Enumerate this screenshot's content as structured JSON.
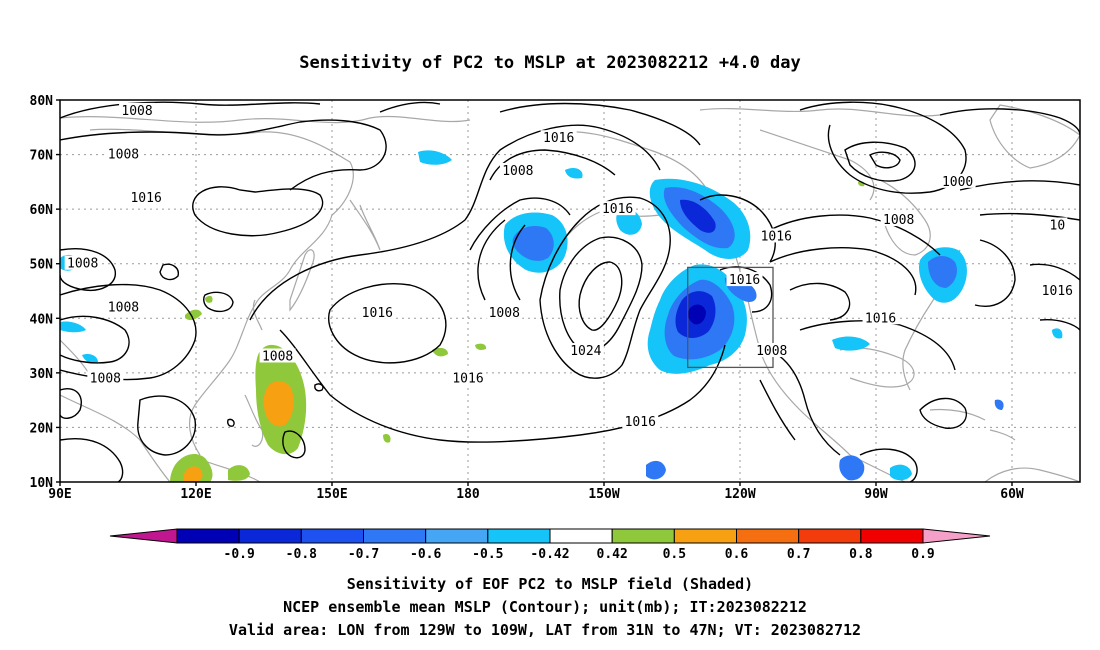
{
  "title": "Sensitivity of PC2 to MSLP at 2023082212 +4.0 day",
  "axes": {
    "lat_labels": [
      "80N",
      "70N",
      "60N",
      "50N",
      "40N",
      "30N",
      "20N",
      "10N"
    ],
    "lat_values": [
      80,
      70,
      60,
      50,
      40,
      30,
      20,
      10
    ],
    "lon_labels": [
      "90E",
      "120E",
      "150E",
      "180",
      "150W",
      "120W",
      "90W",
      "60W"
    ],
    "lon_values": [
      90,
      120,
      150,
      180,
      210,
      240,
      270,
      300
    ],
    "lon_range": [
      90,
      315
    ],
    "lat_range": [
      10,
      80
    ],
    "grid": "dotted"
  },
  "colorbar": {
    "tick_labels": [
      "-0.9",
      "-0.8",
      "-0.7",
      "-0.6",
      "-0.5",
      "-0.42",
      "0.42",
      "0.5",
      "0.6",
      "0.7",
      "0.8",
      "0.9"
    ],
    "colors": [
      "#c0168f",
      "#0000b4",
      "#0a28d8",
      "#1e52f0",
      "#2f78f5",
      "#44a6f5",
      "#15c4f8",
      "#ffffff",
      "#90c83c",
      "#f7a012",
      "#f56e10",
      "#f23c0c",
      "#f00000",
      "#f5a0c8"
    ]
  },
  "contour_labels": [
    {
      "text": "1008",
      "lon": 107,
      "lat": 78
    },
    {
      "text": "1008",
      "lon": 104,
      "lat": 70
    },
    {
      "text": "1016",
      "lon": 200,
      "lat": 73
    },
    {
      "text": "1008",
      "lon": 191,
      "lat": 67
    },
    {
      "text": "1016",
      "lon": 109,
      "lat": 62
    },
    {
      "text": "1008",
      "lon": 95,
      "lat": 50
    },
    {
      "text": "1008",
      "lon": 104,
      "lat": 42
    },
    {
      "text": "1016",
      "lon": 213,
      "lat": 60
    },
    {
      "text": "1016",
      "lon": 160,
      "lat": 41
    },
    {
      "text": "1008",
      "lon": 188,
      "lat": 41
    },
    {
      "text": "1024",
      "lon": 206,
      "lat": 34
    },
    {
      "text": "1008",
      "lon": 138,
      "lat": 33
    },
    {
      "text": "1008",
      "lon": 100,
      "lat": 29
    },
    {
      "text": "1016",
      "lon": 180,
      "lat": 29
    },
    {
      "text": "1016",
      "lon": 218,
      "lat": 21
    },
    {
      "text": "1016",
      "lon": 248,
      "lat": 55
    },
    {
      "text": "1016",
      "lon": 241,
      "lat": 47
    },
    {
      "text": "1008",
      "lon": 247,
      "lat": 34
    },
    {
      "text": "1016",
      "lon": 271,
      "lat": 40
    },
    {
      "text": "1008",
      "lon": 275,
      "lat": 58
    },
    {
      "text": "1000",
      "lon": 288,
      "lat": 65
    },
    {
      "text": "10",
      "lon": 310,
      "lat": 57
    },
    {
      "text": "1016",
      "lon": 310,
      "lat": 45
    }
  ],
  "valid_box": {
    "lon_min": 231,
    "lon_max": 251,
    "lat_min": 31,
    "lat_max": 47
  },
  "caption": {
    "line1": "Sensitivity of EOF PC2 to MSLP field (Shaded)",
    "line2": "NCEP ensemble mean MSLP (Contour); unit(mb); IT:2023082212",
    "line3": "Valid area: LON from 129W to 109W, LAT from 31N to 47N; VT: 2023082712"
  }
}
